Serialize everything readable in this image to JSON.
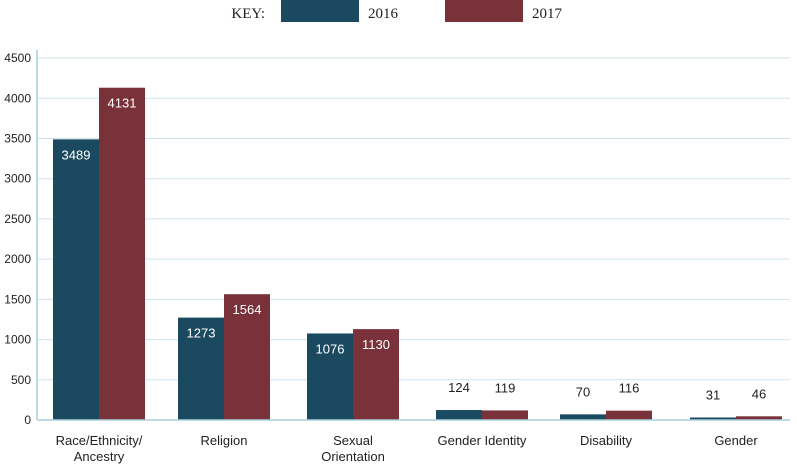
{
  "chart_data": {
    "type": "bar",
    "legend_title": "KEY:",
    "categories": [
      [
        "Race/Ethnicity/",
        "Ancestry"
      ],
      [
        "Religion"
      ],
      [
        "Sexual",
        "Orientation"
      ],
      [
        "Gender Identity"
      ],
      [
        "Disability"
      ],
      [
        "Gender"
      ]
    ],
    "series": [
      {
        "name": "2016",
        "color": "#1b4a60",
        "values": [
          3489,
          1273,
          1076,
          124,
          70,
          31
        ]
      },
      {
        "name": "2017",
        "color": "#7a323a",
        "values": [
          4131,
          1564,
          1130,
          119,
          116,
          46
        ]
      }
    ],
    "yticks": [
      0,
      500,
      1000,
      1500,
      2000,
      2500,
      3000,
      3500,
      4000,
      4500
    ],
    "ylim": [
      0,
      4600
    ],
    "grid": true,
    "grid_color": "#cfe3ea",
    "axis_color": "#a9cfdc",
    "legend_position": "top"
  }
}
